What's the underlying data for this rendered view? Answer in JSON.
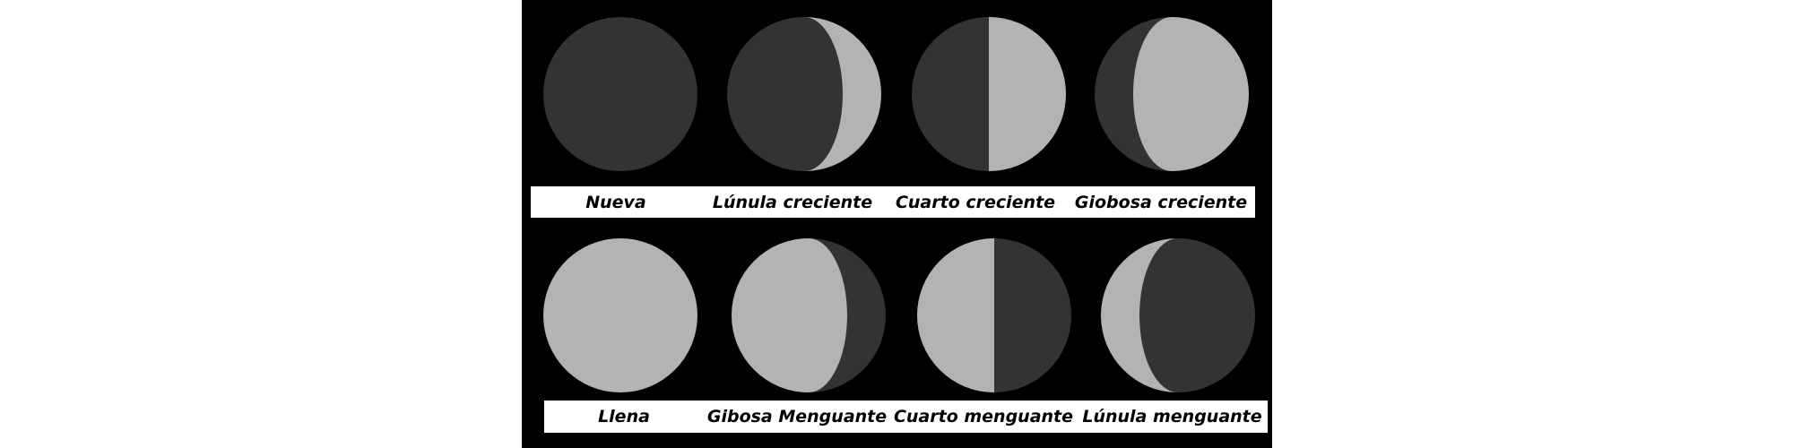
{
  "colors": {
    "background": "#000000",
    "dark": "#333333",
    "light": "#b3b3b3",
    "label_bg": "#ffffff",
    "label_text": "#000000"
  },
  "rows": [
    {
      "phases": [
        {
          "label": "Nueva",
          "illuminated_fraction": 0.0,
          "lit_side": "none"
        },
        {
          "label": "Lúnula creciente",
          "illuminated_fraction": 0.25,
          "lit_side": "right"
        },
        {
          "label": "Cuarto creciente",
          "illuminated_fraction": 0.5,
          "lit_side": "right"
        },
        {
          "label": "Giobosa creciente",
          "illuminated_fraction": 0.75,
          "lit_side": "right"
        }
      ]
    },
    {
      "phases": [
        {
          "label": "Llena",
          "illuminated_fraction": 1.0,
          "lit_side": "full"
        },
        {
          "label": "Gibosa Menguante",
          "illuminated_fraction": 0.75,
          "lit_side": "left"
        },
        {
          "label": "Cuarto menguante",
          "illuminated_fraction": 0.5,
          "lit_side": "left"
        },
        {
          "label": "Lúnula menguante",
          "illuminated_fraction": 0.25,
          "lit_side": "left"
        }
      ]
    }
  ]
}
